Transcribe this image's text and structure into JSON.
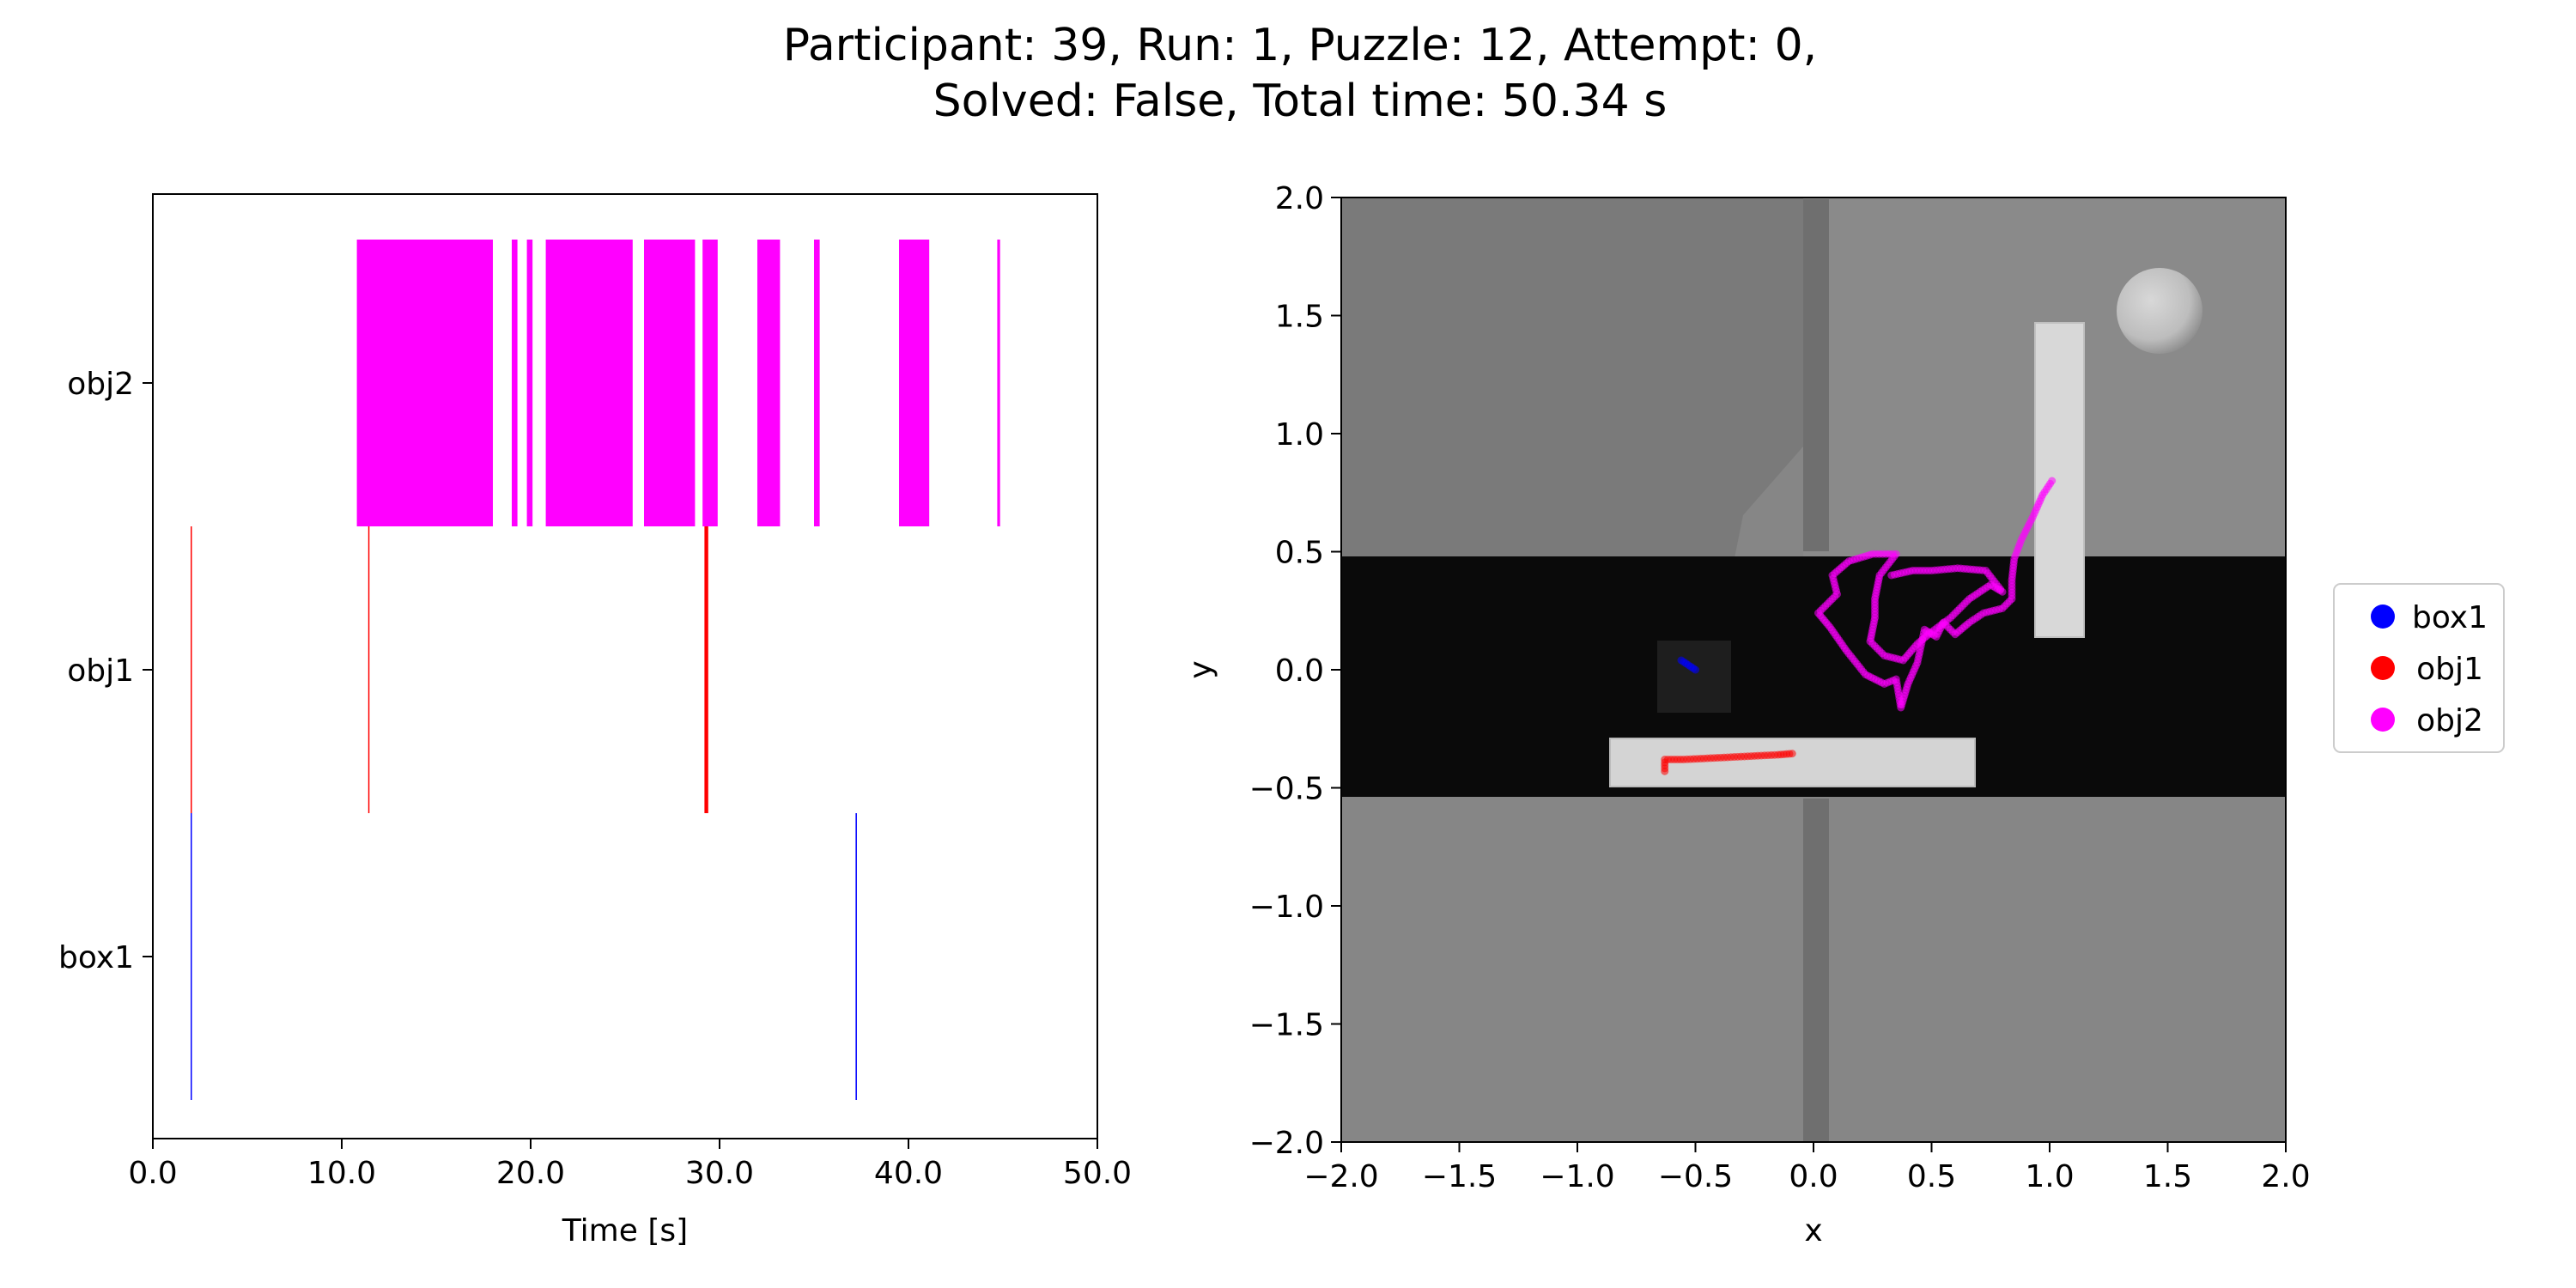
{
  "figure": {
    "title_line1": "Participant: 39, Run: 1, Puzzle: 12, Attempt: 0,",
    "title_line2": "Solved: False, Total time: 50.34 s"
  },
  "colors": {
    "box1": "#0000ff",
    "obj1": "#ff0000",
    "obj2": "#ff00ff"
  },
  "chart_data": [
    {
      "type": "event-raster",
      "xlabel": "Time [s]",
      "ylabel": "",
      "xlim": [
        0,
        50
      ],
      "x_ticks": [
        0,
        10,
        20,
        30,
        40,
        50
      ],
      "x_tick_labels": [
        "0.0",
        "10.0",
        "20.0",
        "30.0",
        "40.0",
        "50.0"
      ],
      "categories": [
        "box1",
        "obj1",
        "obj2"
      ],
      "series": [
        {
          "name": "box1",
          "color": "#0000ff",
          "intervals": [
            [
              2.0,
              2.05
            ],
            [
              37.2,
              37.27
            ]
          ]
        },
        {
          "name": "obj1",
          "color": "#ff0000",
          "intervals": [
            [
              2.0,
              2.05
            ],
            [
              11.4,
              11.46
            ],
            [
              29.2,
              29.4
            ]
          ]
        },
        {
          "name": "obj2",
          "color": "#ff00ff",
          "intervals": [
            [
              10.8,
              18.0
            ],
            [
              19.0,
              19.3
            ],
            [
              19.8,
              20.1
            ],
            [
              20.8,
              25.4
            ],
            [
              26.0,
              28.7
            ],
            [
              29.1,
              29.9
            ],
            [
              32.0,
              33.2
            ],
            [
              35.0,
              35.3
            ],
            [
              39.5,
              41.1
            ],
            [
              44.7,
              44.85
            ]
          ]
        }
      ],
      "grid": false
    },
    {
      "type": "scatter",
      "xlabel": "x",
      "ylabel": "y",
      "xlim": [
        -2.0,
        2.0
      ],
      "ylim": [
        -2.0,
        2.0
      ],
      "x_ticks": [
        -2.0,
        -1.5,
        -1.0,
        -0.5,
        0.0,
        0.5,
        1.0,
        1.5,
        2.0
      ],
      "x_tick_labels": [
        "−2.0",
        "−1.5",
        "−1.0",
        "−0.5",
        "0.0",
        "0.5",
        "1.0",
        "1.5",
        "2.0"
      ],
      "y_ticks": [
        -2.0,
        -1.5,
        -1.0,
        -0.5,
        0.0,
        0.5,
        1.0,
        1.5,
        2.0
      ],
      "y_tick_labels": [
        "−2.0",
        "−1.5",
        "−1.0",
        "−0.5",
        "0.0",
        "0.5",
        "1.0",
        "1.5",
        "2.0"
      ],
      "background": "top-down rendered scene of the puzzle (grey floor, black channel, light blocks, sphere)",
      "legend": {
        "placement": "outside-right",
        "entries": [
          "box1",
          "obj1",
          "obj2"
        ]
      },
      "series": [
        {
          "name": "box1",
          "color": "#0000ff",
          "points": [
            [
              -0.56,
              0.04
            ],
            [
              -0.53,
              0.02
            ],
            [
              -0.5,
              0.0
            ]
          ]
        },
        {
          "name": "obj1",
          "color": "#ff0000",
          "points": [
            [
              -0.63,
              -0.43
            ],
            [
              -0.63,
              -0.38
            ],
            [
              -0.55,
              -0.38
            ],
            [
              -0.45,
              -0.375
            ],
            [
              -0.35,
              -0.37
            ],
            [
              -0.25,
              -0.365
            ],
            [
              -0.15,
              -0.36
            ],
            [
              -0.09,
              -0.355
            ]
          ]
        },
        {
          "name": "obj2",
          "color": "#ff00ff",
          "points": [
            [
              1.01,
              0.8
            ],
            [
              0.97,
              0.74
            ],
            [
              0.93,
              0.65
            ],
            [
              0.88,
              0.55
            ],
            [
              0.85,
              0.47
            ],
            [
              0.84,
              0.38
            ],
            [
              0.84,
              0.3
            ],
            [
              0.8,
              0.26
            ],
            [
              0.72,
              0.24
            ],
            [
              0.66,
              0.2
            ],
            [
              0.6,
              0.15
            ],
            [
              0.55,
              0.2
            ],
            [
              0.52,
              0.14
            ],
            [
              0.47,
              0.17
            ],
            [
              0.44,
              0.03
            ],
            [
              0.4,
              -0.06
            ],
            [
              0.37,
              -0.16
            ],
            [
              0.35,
              -0.04
            ],
            [
              0.3,
              -0.06
            ],
            [
              0.22,
              -0.02
            ],
            [
              0.14,
              0.08
            ],
            [
              0.07,
              0.18
            ],
            [
              0.02,
              0.24
            ],
            [
              0.1,
              0.32
            ],
            [
              0.08,
              0.4
            ],
            [
              0.15,
              0.46
            ],
            [
              0.25,
              0.49
            ],
            [
              0.35,
              0.49
            ],
            [
              0.28,
              0.4
            ],
            [
              0.26,
              0.3
            ],
            [
              0.26,
              0.22
            ],
            [
              0.24,
              0.12
            ],
            [
              0.3,
              0.06
            ],
            [
              0.38,
              0.04
            ],
            [
              0.44,
              0.11
            ],
            [
              0.5,
              0.16
            ],
            [
              0.58,
              0.22
            ],
            [
              0.66,
              0.3
            ],
            [
              0.75,
              0.36
            ],
            [
              0.8,
              0.33
            ],
            [
              0.73,
              0.42
            ],
            [
              0.61,
              0.43
            ],
            [
              0.5,
              0.42
            ],
            [
              0.42,
              0.42
            ],
            [
              0.33,
              0.4
            ]
          ]
        }
      ],
      "grid": false
    }
  ]
}
